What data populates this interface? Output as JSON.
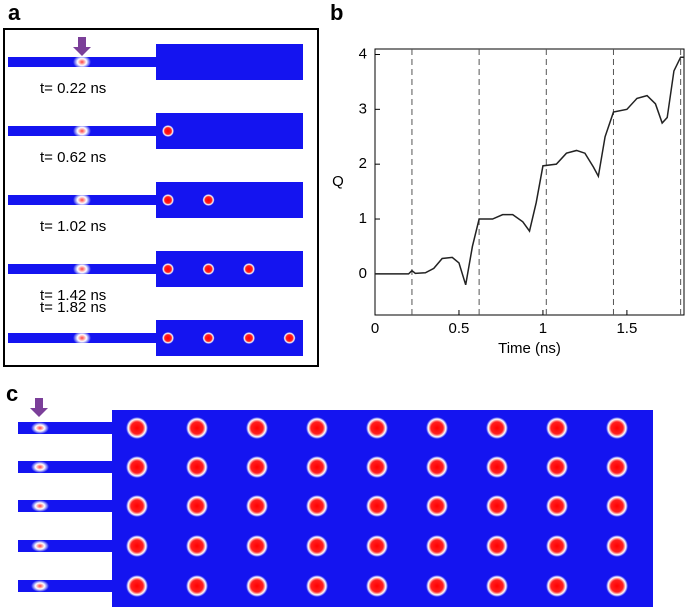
{
  "panel_a": {
    "label": "a",
    "frames": [
      "t= 0.22 ns",
      "t= 0.62 ns",
      "t= 1.02 ns",
      "t= 1.42 ns",
      "t= 1.82 ns"
    ]
  },
  "chart_data": {
    "type": "line",
    "panel_label": "b",
    "x_label": "Time (ns)",
    "y_label": "Q",
    "x": [
      0,
      0.1,
      0.2,
      0.22,
      0.24,
      0.3,
      0.35,
      0.4,
      0.46,
      0.5,
      0.54,
      0.58,
      0.62,
      0.7,
      0.76,
      0.82,
      0.88,
      0.92,
      0.96,
      1.0,
      1.08,
      1.14,
      1.2,
      1.25,
      1.3,
      1.33,
      1.37,
      1.42,
      1.5,
      1.56,
      1.62,
      1.67,
      1.71,
      1.74,
      1.78,
      1.82,
      1.84
    ],
    "values": [
      0,
      0,
      0,
      0.06,
      0.01,
      0.02,
      0.1,
      0.28,
      0.3,
      0.2,
      -0.2,
      0.5,
      1.0,
      1.0,
      1.08,
      1.08,
      0.95,
      0.78,
      1.3,
      1.97,
      2.0,
      2.2,
      2.25,
      2.2,
      1.95,
      1.78,
      2.5,
      2.95,
      3.0,
      3.2,
      3.25,
      3.1,
      2.75,
      2.85,
      3.7,
      3.95,
      3.95
    ],
    "color": "#222222",
    "markers": [
      0.22,
      0.62,
      1.02,
      1.42,
      1.82
    ],
    "xlim": [
      0,
      1.84
    ],
    "ylim": [
      -0.75,
      4.1
    ],
    "xticks": [
      0,
      0.5,
      1,
      1.5
    ],
    "yticks": [
      0,
      1,
      2,
      3,
      4
    ]
  },
  "panel_c": {
    "label": "c"
  }
}
